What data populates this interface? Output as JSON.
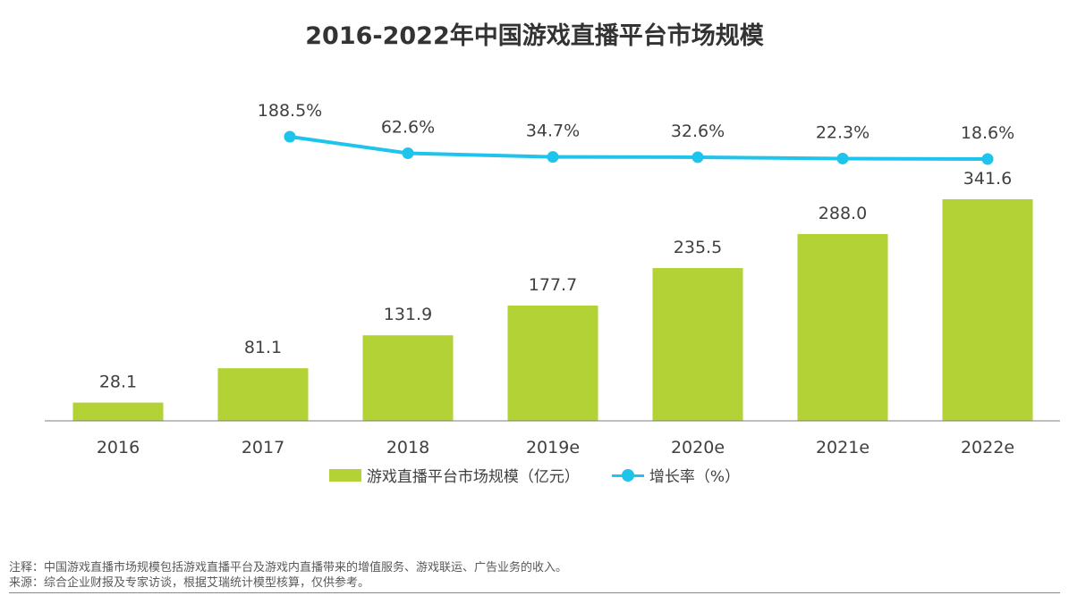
{
  "colors": {
    "bar": "#b2d235",
    "line": "#1ec4ec",
    "axis": "#7f7f7f"
  },
  "chart_data": {
    "type": "bar",
    "title": "2016-2022年中国游戏直播平台市场规模",
    "categories": [
      "2016",
      "2017",
      "2018",
      "2019e",
      "2020e",
      "2021e",
      "2022e"
    ],
    "series": [
      {
        "name": "游戏直播平台市场规模（亿元）",
        "type": "bar",
        "values": [
          28.1,
          81.1,
          131.9,
          177.7,
          235.5,
          288.0,
          341.6
        ],
        "labels": [
          "28.1",
          "81.1",
          "131.9",
          "177.7",
          "235.5",
          "288.0",
          "341.6"
        ]
      },
      {
        "name": "增长率（%）",
        "type": "line",
        "values": [
          null,
          188.5,
          62.6,
          34.7,
          32.6,
          22.3,
          18.6
        ],
        "labels": [
          "",
          "188.5%",
          "62.6%",
          "34.7%",
          "32.6%",
          "22.3%",
          "18.6%"
        ]
      }
    ],
    "ylim": [
      0,
      341.6
    ],
    "grid": false,
    "legend": "bottom"
  },
  "notes": {
    "note": "注释：中国游戏直播市场规模包括游戏直播平台及游戏内直播带来的增值服务、游戏联运、广告业务的收入。",
    "source": "来源：综合企业财报及专家访谈，根据艾瑞统计模型核算，仅供参考。"
  }
}
